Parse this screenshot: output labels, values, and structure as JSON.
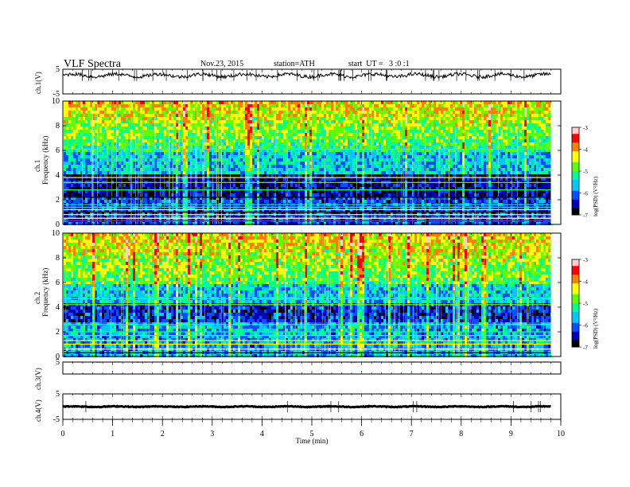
{
  "header": {
    "title": "VLF Spectra",
    "date": "Nov.23, 2015",
    "station": "station=ATH",
    "start": "start  UT =   3 :0 :1"
  },
  "chart_data": {
    "type": "heatmap",
    "x_axis": {
      "label": "Time (min)",
      "range": [
        0,
        10
      ],
      "ticks": [
        "0",
        "1",
        "2",
        "3",
        "4",
        "5",
        "6",
        "7",
        "8",
        "9",
        "10"
      ]
    },
    "panels": [
      {
        "id": "ch1_wave",
        "type": "line",
        "ylabel": "ch.1(V)",
        "ylim": [
          -5,
          5
        ],
        "yticks": [
          "5",
          "-5"
        ],
        "baseline_v": 2.5,
        "data_end_min": 9.8
      },
      {
        "id": "ch1_spec",
        "type": "heatmap",
        "ylabel": "ch.1\nFrequency (kHz)",
        "ylim": [
          0,
          10
        ],
        "yticks": [
          "0",
          "2",
          "4",
          "6",
          "8",
          "10"
        ],
        "colorbar": {
          "label": "log(PSD) (V²/Hz)",
          "range": [
            -7,
            -3
          ],
          "ticks": [
            "-3",
            "-4",
            "-5",
            "-6",
            "-7"
          ]
        }
      },
      {
        "id": "ch2_spec",
        "type": "heatmap",
        "ylabel": "ch.2\nFrequency (kHz)",
        "ylim": [
          0,
          10
        ],
        "yticks": [
          "0",
          "2",
          "4",
          "6",
          "8",
          "10"
        ],
        "colorbar": {
          "label": "log(PSD) (V²/Hz)",
          "range": [
            -7,
            -3
          ],
          "ticks": [
            "-3",
            "-4",
            "-5",
            "-6",
            "-7"
          ]
        }
      },
      {
        "id": "ch3_wave",
        "type": "line",
        "ylabel": "ch.3(V)",
        "ylim": [
          -5,
          5
        ],
        "yticks": [
          "5"
        ],
        "baseline_v": 5
      },
      {
        "id": "ch4_wave",
        "type": "line",
        "ylabel": "ch.4(V)",
        "ylim": [
          -5,
          5
        ],
        "yticks": [
          "5",
          "-5"
        ],
        "baseline_v": 0
      }
    ]
  },
  "colors": {
    "cmap": [
      "#000000",
      "#0000b4",
      "#0050ff",
      "#00c8ff",
      "#00ff90",
      "#60ff00",
      "#ffff00",
      "#ff8000",
      "#ff0000",
      "#ffd0d0"
    ]
  },
  "labels": {
    "ch1_wave_ylabel": "ch.1(V)",
    "ch1_spec_ylabel": "ch.1",
    "freq_label": "Frequency (kHz)",
    "ch2_spec_ylabel": "ch.2",
    "ch3_wave_ylabel": "ch.3(V)",
    "ch4_wave_ylabel": "ch.4(V)",
    "cb_label": "log(PSD) (V²/Hz)",
    "xlabel": "Time (min)"
  }
}
